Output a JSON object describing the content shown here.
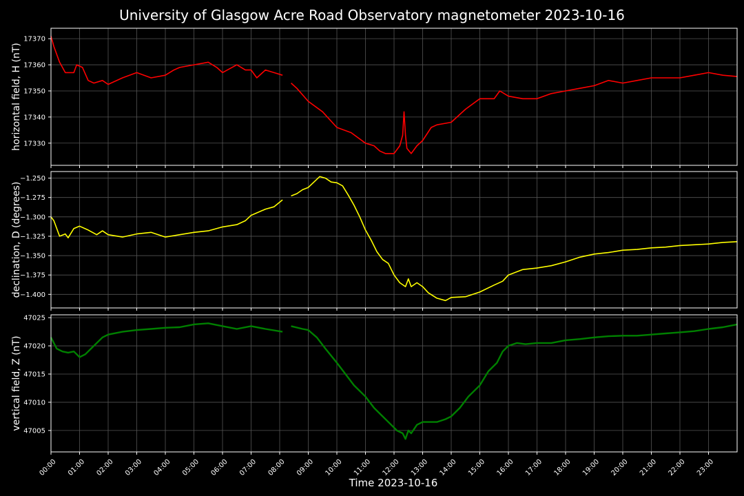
{
  "title": "University of Glasgow Acre Road Observatory magnetometer 2023-10-16",
  "xlabel": "Time 2023-10-16",
  "colors": {
    "background": "#000000",
    "axes_frame": "#ffffff",
    "grid": "#555555",
    "text": "#ffffff"
  },
  "chart_data": [
    {
      "type": "line",
      "name": "horizontal",
      "title": "",
      "xlabel": "",
      "ylabel": "horizontal field, H (nT)",
      "xlim": [
        0,
        24
      ],
      "ylim": [
        17321.5,
        17374
      ],
      "yticks": [
        17330,
        17340,
        17350,
        17360,
        17370
      ],
      "grid": true,
      "color": "#ff0000",
      "x": [
        0,
        0.1,
        0.3,
        0.5,
        0.8,
        0.9,
        1.1,
        1.3,
        1.5,
        1.8,
        2.0,
        2.5,
        3.0,
        3.5,
        4.0,
        4.3,
        4.5,
        5.0,
        5.5,
        5.8,
        6.0,
        6.5,
        6.8,
        7.0,
        7.2,
        7.5,
        7.8,
        8.1
      ],
      "values": [
        17371,
        17367,
        17361,
        17357,
        17357,
        17360,
        17359,
        17354,
        17353,
        17354,
        17352.5,
        17355,
        17357,
        17355,
        17356,
        17358,
        17359,
        17360,
        17361,
        17359,
        17357,
        17360,
        17358,
        17358,
        17355,
        17358,
        17357,
        17356
      ],
      "segments": [
        {
          "x": [
            8.4,
            8.6,
            9.0,
            9.5,
            10.0,
            10.5,
            11.0,
            11.3,
            11.5,
            11.7,
            12.0,
            12.2,
            12.3,
            12.35,
            12.4,
            12.45,
            12.6,
            12.8,
            13.0,
            13.3,
            13.5,
            14.0,
            14.5,
            15.0,
            15.3,
            15.5,
            15.7,
            16.0,
            16.5,
            17.0,
            17.5,
            18.0,
            18.5,
            19.0,
            19.5,
            20.0,
            20.5,
            21.0,
            21.5,
            22.0,
            22.5,
            23.0,
            23.5,
            24.0
          ],
          "values": [
            17353,
            17351,
            17346,
            17342,
            17336,
            17334,
            17330,
            17329,
            17327,
            17326,
            17326,
            17329,
            17333,
            17342,
            17333,
            17328,
            17326,
            17329,
            17331,
            17336,
            17337,
            17338,
            17343,
            17347,
            17347,
            17347,
            17350,
            17348,
            17347,
            17347,
            17349,
            17350,
            17351,
            17352,
            17354,
            17353,
            17354,
            17355,
            17355,
            17355,
            17356,
            17357,
            17356,
            17355.5
          ]
        }
      ]
    },
    {
      "type": "line",
      "name": "declination",
      "title": "",
      "xlabel": "",
      "ylabel": "declination, D (degrees)",
      "xlim": [
        0,
        24
      ],
      "ylim": [
        -1.4175,
        -1.2415
      ],
      "yticks": [
        -1.25,
        -1.275,
        -1.3,
        -1.325,
        -1.35,
        -1.375,
        -1.4
      ],
      "ytick_labels": [
        "−1.250",
        "−1.275",
        "−1.300",
        "−1.325",
        "−1.350",
        "−1.375",
        "−1.400"
      ],
      "grid": true,
      "color": "#ffff00",
      "x": [
        0,
        0.1,
        0.3,
        0.5,
        0.6,
        0.8,
        1.0,
        1.3,
        1.6,
        1.8,
        2.0,
        2.5,
        3.0,
        3.5,
        4.0,
        4.5,
        5.0,
        5.5,
        6.0,
        6.5,
        6.8,
        7.0,
        7.5,
        7.8,
        8.1
      ],
      "values": [
        -1.3,
        -1.305,
        -1.325,
        -1.322,
        -1.327,
        -1.315,
        -1.312,
        -1.317,
        -1.323,
        -1.318,
        -1.323,
        -1.326,
        -1.322,
        -1.32,
        -1.326,
        -1.323,
        -1.32,
        -1.318,
        -1.313,
        -1.31,
        -1.305,
        -1.298,
        -1.29,
        -1.287,
        -1.278
      ],
      "segments": [
        {
          "x": [
            8.4,
            8.6,
            8.8,
            9.0,
            9.2,
            9.4,
            9.6,
            9.8,
            10.0,
            10.2,
            10.4,
            10.6,
            10.8,
            11.0,
            11.2,
            11.4,
            11.6,
            11.8,
            12.0,
            12.2,
            12.4,
            12.5,
            12.6,
            12.8,
            13.0,
            13.2,
            13.5,
            13.8,
            14.0,
            14.5,
            15.0,
            15.5,
            15.8,
            16.0,
            16.5,
            17.0,
            17.5,
            18.0,
            18.5,
            19.0,
            19.5,
            20.0,
            20.5,
            21.0,
            21.5,
            22.0,
            22.5,
            23.0,
            23.5,
            24.0
          ],
          "values": [
            -1.273,
            -1.27,
            -1.265,
            -1.262,
            -1.255,
            -1.248,
            -1.25,
            -1.255,
            -1.256,
            -1.26,
            -1.272,
            -1.285,
            -1.3,
            -1.317,
            -1.33,
            -1.345,
            -1.355,
            -1.36,
            -1.375,
            -1.385,
            -1.39,
            -1.38,
            -1.39,
            -1.385,
            -1.39,
            -1.398,
            -1.405,
            -1.408,
            -1.404,
            -1.403,
            -1.397,
            -1.388,
            -1.383,
            -1.375,
            -1.368,
            -1.366,
            -1.363,
            -1.358,
            -1.352,
            -1.348,
            -1.346,
            -1.343,
            -1.342,
            -1.34,
            -1.339,
            -1.337,
            -1.336,
            -1.335,
            -1.333,
            -1.332
          ]
        }
      ]
    },
    {
      "type": "line",
      "name": "vertical",
      "title": "",
      "xlabel": "",
      "ylabel": "vertical field, Z (nT)",
      "xlim": [
        0,
        24
      ],
      "ylim": [
        47001.2,
        47025.5
      ],
      "yticks": [
        47005,
        47010,
        47015,
        47020,
        47025
      ],
      "grid": true,
      "color": "#008000",
      "x": [
        0,
        0.2,
        0.4,
        0.6,
        0.8,
        1.0,
        1.2,
        1.5,
        1.8,
        2.0,
        2.5,
        3.0,
        3.5,
        4.0,
        4.5,
        5.0,
        5.5,
        6.0,
        6.5,
        7.0,
        7.5,
        8.1
      ],
      "values": [
        47021.5,
        47019.5,
        47019,
        47018.8,
        47019,
        47018,
        47018.5,
        47020,
        47021.5,
        47022,
        47022.5,
        47022.8,
        47023,
        47023.2,
        47023.3,
        47023.8,
        47024,
        47023.5,
        47023,
        47023.5,
        47023,
        47022.5
      ],
      "segments": [
        {
          "x": [
            8.4,
            8.8,
            9.0,
            9.3,
            9.6,
            10.0,
            10.3,
            10.6,
            11.0,
            11.3,
            11.6,
            11.9,
            12.1,
            12.3,
            12.4,
            12.5,
            12.6,
            12.8,
            13.0,
            13.3,
            13.5,
            13.8,
            14.0,
            14.3,
            14.6,
            15.0,
            15.3,
            15.6,
            15.8,
            16.0,
            16.3,
            16.6,
            17.0,
            17.5,
            18.0,
            18.5,
            19.0,
            19.5,
            20.0,
            20.5,
            21.0,
            21.5,
            22.0,
            22.5,
            23.0,
            23.5,
            24.0
          ],
          "values": [
            47023.5,
            47023,
            47022.8,
            47021.5,
            47019.5,
            47017,
            47015,
            47013,
            47011,
            47009,
            47007.5,
            47006,
            47005,
            47004.5,
            47003.5,
            47005,
            47004.5,
            47006,
            47006.5,
            47006.5,
            47006.5,
            47007,
            47007.5,
            47009,
            47011,
            47013,
            47015.5,
            47017,
            47019,
            47020,
            47020.5,
            47020.3,
            47020.5,
            47020.5,
            47021,
            47021.2,
            47021.5,
            47021.7,
            47021.8,
            47021.8,
            47022,
            47022.2,
            47022.4,
            47022.6,
            47023,
            47023.3,
            47023.8
          ]
        }
      ]
    }
  ],
  "x_ticks": {
    "values": [
      0,
      1,
      2,
      3,
      4,
      5,
      6,
      7,
      8,
      9,
      10,
      11,
      12,
      13,
      14,
      15,
      16,
      17,
      18,
      19,
      20,
      21,
      22,
      23
    ],
    "labels": [
      "00:00",
      "01:00",
      "02:00",
      "03:00",
      "04:00",
      "05:00",
      "06:00",
      "07:00",
      "08:00",
      "09:00",
      "10:00",
      "11:00",
      "12:00",
      "13:00",
      "14:00",
      "15:00",
      "16:00",
      "17:00",
      "18:00",
      "19:00",
      "20:00",
      "21:00",
      "22:00",
      "23:00"
    ]
  }
}
